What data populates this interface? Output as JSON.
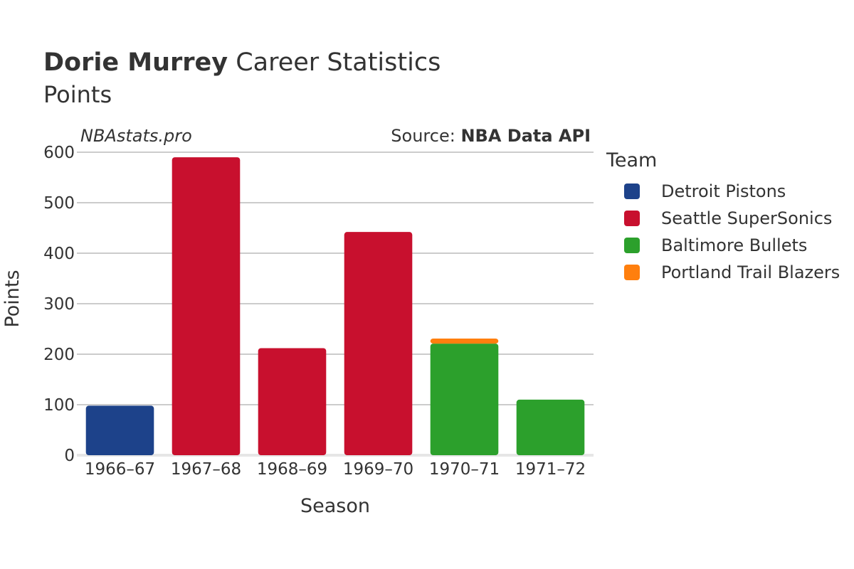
{
  "header": {
    "player": "Dorie Murrey",
    "title_suffix": " Career Statistics",
    "subtitle": "Points",
    "watermark": "NBAstats.pro",
    "source_prefix": "Source: ",
    "source_name": "NBA Data API"
  },
  "legend": {
    "title": "Team",
    "items": [
      {
        "label": "Detroit Pistons",
        "color": "#1d428a"
      },
      {
        "label": "Seattle SuperSonics",
        "color": "#c8102e"
      },
      {
        "label": "Baltimore Bullets",
        "color": "#2ca02c"
      },
      {
        "label": "Portland Trail Blazers",
        "color": "#ff7f0e"
      }
    ]
  },
  "chart_data": {
    "type": "bar",
    "stacked": true,
    "xlabel": "Season",
    "ylabel": "Points",
    "ylim": [
      0,
      600
    ],
    "yticks": [
      0,
      100,
      200,
      300,
      400,
      500,
      600
    ],
    "grid": true,
    "legend_position": "right",
    "categories": [
      "1966–67",
      "1967–68",
      "1968–69",
      "1969–70",
      "1970–71",
      "1971–72"
    ],
    "series": [
      {
        "name": "Detroit Pistons",
        "color": "#1d428a",
        "values": [
          98,
          0,
          0,
          0,
          0,
          0
        ]
      },
      {
        "name": "Seattle SuperSonics",
        "color": "#c8102e",
        "values": [
          0,
          590,
          212,
          442,
          0,
          0
        ]
      },
      {
        "name": "Baltimore Bullets",
        "color": "#2ca02c",
        "values": [
          0,
          0,
          0,
          0,
          221,
          110
        ]
      },
      {
        "name": "Portland Trail Blazers",
        "color": "#ff7f0e",
        "values": [
          0,
          0,
          0,
          0,
          10,
          0
        ]
      }
    ]
  }
}
